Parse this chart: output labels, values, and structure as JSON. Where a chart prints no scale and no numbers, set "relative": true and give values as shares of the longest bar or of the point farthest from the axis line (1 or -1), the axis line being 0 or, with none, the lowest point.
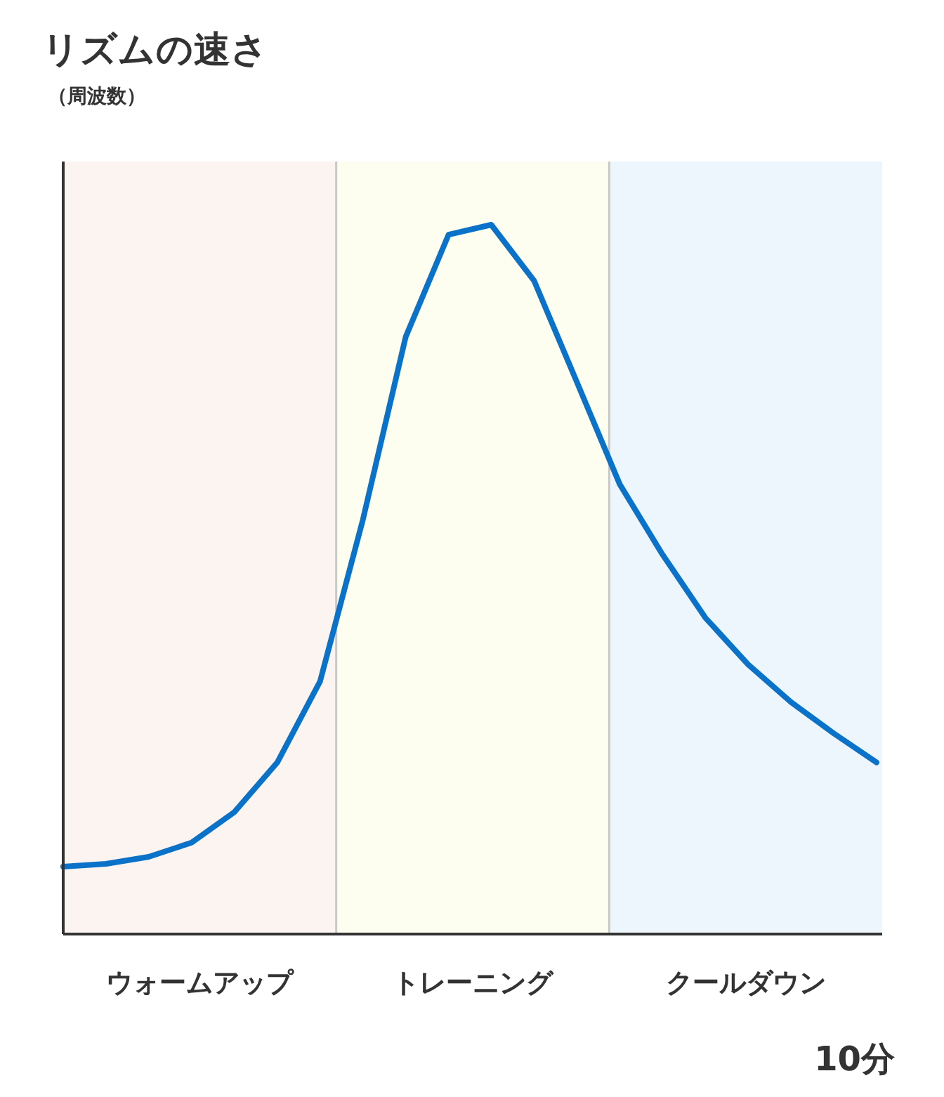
{
  "chart_data": {
    "type": "line",
    "title": "リズムの速さ",
    "subtitle": "（周波数）",
    "xlabel": "10分",
    "relative": true,
    "categories": [
      null,
      null,
      null,
      null,
      null,
      null,
      null,
      null,
      null,
      null,
      null,
      null,
      null,
      null,
      null,
      null,
      null,
      null,
      null,
      null
    ],
    "series": [
      {
        "color": "#0a72c8",
        "values": [
          0.095,
          0.099,
          0.109,
          0.129,
          0.172,
          0.242,
          0.356,
          0.584,
          0.842,
          0.986,
          1,
          0.921,
          0.778,
          0.634,
          0.535,
          0.446,
          0.38,
          0.327,
          0.283,
          0.242
        ]
      }
    ],
    "annotations": [
      "ウォームアップ",
      "トレーニング",
      "クールダウン"
    ],
    "line_style": "solid"
  }
}
